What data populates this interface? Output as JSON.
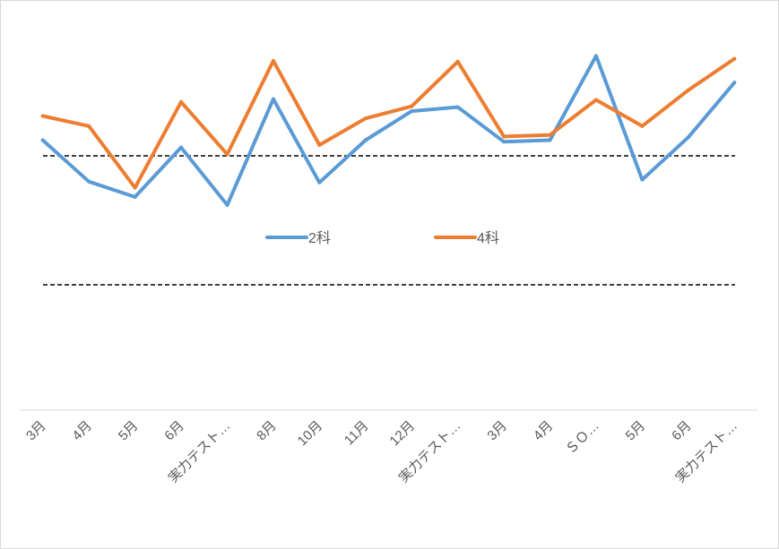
{
  "chart_data": {
    "type": "line",
    "title": "",
    "xlabel": "",
    "ylabel": "",
    "ylim": [
      0,
      100
    ],
    "grid": false,
    "legend_position": "middle",
    "categories": [
      "3月",
      "4月",
      "5月",
      "6月",
      "実力テスト…",
      "8月",
      "10月",
      "11月",
      "12月",
      "実力テスト…",
      "3月",
      "4月",
      "ＳＯ…",
      "5月",
      "6月",
      "実力テスト…"
    ],
    "series": [
      {
        "name": "2科",
        "color": "#5b9bd5",
        "values": [
          67.0,
          56.7,
          52.9,
          65.2,
          50.9,
          77.2,
          56.5,
          67.0,
          74.2,
          75.2,
          66.6,
          67.0,
          87.9,
          57.2,
          67.7,
          81.3
        ]
      },
      {
        "name": "4科",
        "color": "#ed7d31",
        "values": [
          73.0,
          70.5,
          55.2,
          76.5,
          63.5,
          86.7,
          65.8,
          72.4,
          75.4,
          86.5,
          67.9,
          68.3,
          77.0,
          70.5,
          79.4,
          87.2
        ]
      }
    ],
    "reference_lines": [
      {
        "value": 63.1,
        "style": "dashed",
        "color": "#000000"
      },
      {
        "value": 31.1,
        "style": "dashed",
        "color": "#000000"
      }
    ]
  }
}
